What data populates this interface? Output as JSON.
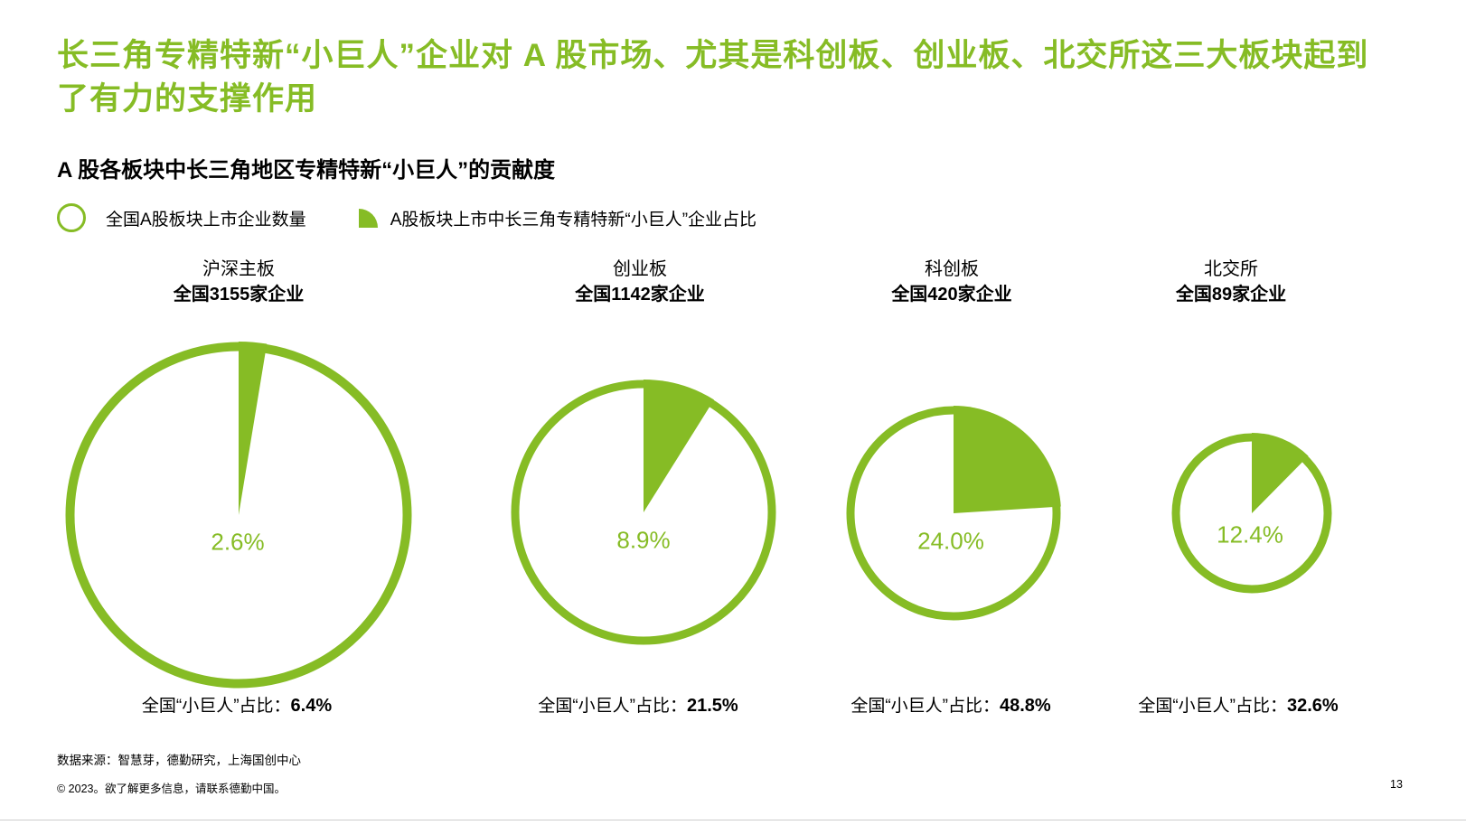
{
  "theme": {
    "accent": "#86BC25",
    "text": "#000000",
    "rule": "#cccccc"
  },
  "header": {
    "title": "长三角专精特新“小巨人”企业对 A 股市场、尤其是科创板、创业板、北交所这三大板块起到了有力的支撑作用",
    "subtitle": "A 股各板块中长三角地区专精特新“小巨人”的贡献度"
  },
  "legend": {
    "items": [
      {
        "icon": "circle-outline-icon",
        "label": "全国A股板块上市企业数量"
      },
      {
        "icon": "pie-wedge-icon",
        "label": "A股板块上市中长三角专精特新“小巨人”企业占比"
      }
    ]
  },
  "charts": [
    {
      "board": "沪深主板",
      "total_label": "全国3155家企业",
      "share_pct": 2.6,
      "share_label": "2.6%",
      "caption_label": "全国“小巨人”占比：",
      "caption_value": "6.4%"
    },
    {
      "board": "创业板",
      "total_label": "全国1142家企业",
      "share_pct": 8.9,
      "share_label": "8.9%",
      "caption_label": "全国“小巨人”占比：",
      "caption_value": "21.5%"
    },
    {
      "board": "科创板",
      "total_label": "全国420家企业",
      "share_pct": 24.0,
      "share_label": "24.0%",
      "caption_label": "全国“小巨人”占比：",
      "caption_value": "48.8%"
    },
    {
      "board": "北交所",
      "total_label": "全国89家企业",
      "share_pct": 12.4,
      "share_label": "12.4%",
      "caption_label": "全国“小巨人”占比：",
      "caption_value": "32.6%"
    }
  ],
  "chart_data": {
    "type": "pie",
    "title": "A 股各板块中长三角地区专精特新“小巨人”的贡献度",
    "legend": [
      "全国A股板块上市企业数量",
      "A股板块上市中长三角专精特新“小巨人”企业占比"
    ],
    "charts": [
      {
        "board": "沪深主板",
        "national_listed_companies": 3155,
        "yangtze_delta_little_giant_share_pct": 2.6,
        "national_little_giant_share_pct": 6.4
      },
      {
        "board": "创业板",
        "national_listed_companies": 1142,
        "yangtze_delta_little_giant_share_pct": 8.9,
        "national_little_giant_share_pct": 21.5
      },
      {
        "board": "科创板",
        "national_listed_companies": 420,
        "yangtze_delta_little_giant_share_pct": 24.0,
        "national_little_giant_share_pct": 48.8
      },
      {
        "board": "北交所",
        "national_listed_companies": 89,
        "yangtze_delta_little_giant_share_pct": 12.4,
        "national_little_giant_share_pct": 32.6
      }
    ]
  },
  "footer": {
    "source": "数据来源：智慧芽，德勤研究，上海国创中心",
    "copyright": "© 2023。欲了解更多信息，请联系德勤中国。",
    "page_number": "13"
  }
}
